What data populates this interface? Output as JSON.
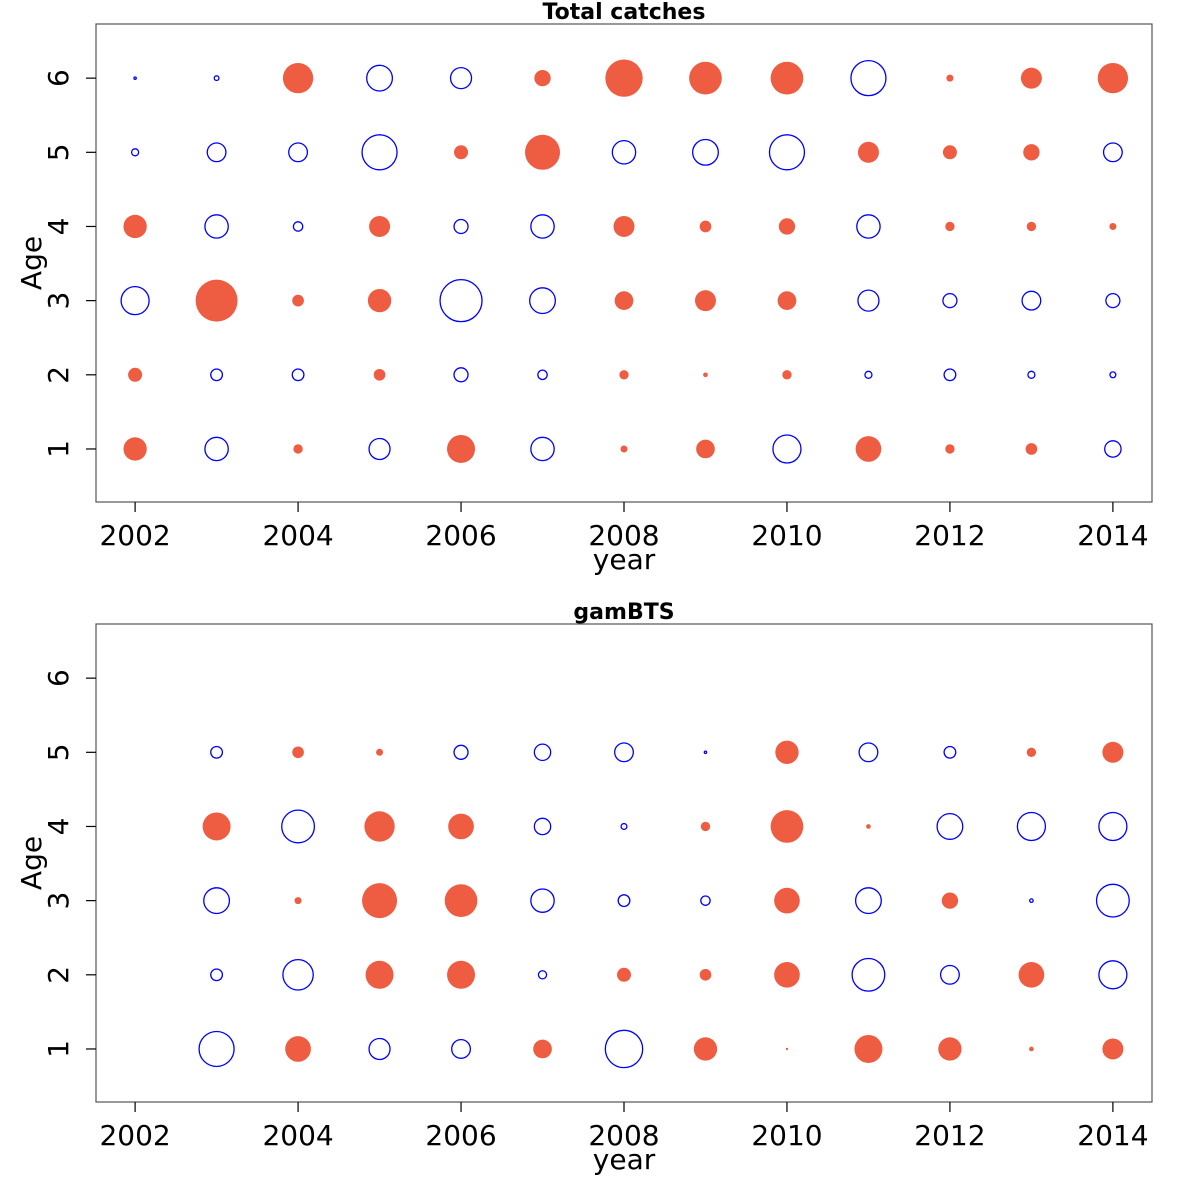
{
  "chart_data": [
    {
      "type": "bubble",
      "title": "Total catches",
      "xlabel": "year",
      "ylabel": "Age",
      "x": [
        2002,
        2003,
        2004,
        2005,
        2006,
        2007,
        2008,
        2009,
        2010,
        2011,
        2012,
        2013,
        2014
      ],
      "ages": [
        1,
        2,
        3,
        4,
        5,
        6
      ],
      "values": [
        [
          1.0,
          -1.0,
          0.4,
          -0.9,
          1.2,
          -1.0,
          0.3,
          0.8,
          -1.2,
          1.1,
          0.4,
          0.5,
          -0.7
        ],
        [
          0.6,
          -0.5,
          -0.5,
          0.5,
          -0.6,
          -0.4,
          0.4,
          0.2,
          0.4,
          -0.3,
          -0.5,
          -0.3,
          -0.25
        ],
        [
          -1.2,
          1.8,
          0.5,
          1.0,
          -1.8,
          -1.1,
          0.8,
          0.9,
          0.8,
          -0.9,
          -0.6,
          -0.8,
          -0.6
        ],
        [
          1.0,
          -1.0,
          -0.4,
          0.9,
          -0.6,
          -1.0,
          0.9,
          0.5,
          0.7,
          -1.0,
          0.4,
          0.4,
          0.3
        ],
        [
          -0.3,
          -0.8,
          -0.8,
          -1.5,
          0.6,
          1.5,
          -1.0,
          -1.1,
          -1.5,
          0.9,
          0.6,
          0.7,
          -0.8
        ],
        [
          -0.1,
          -0.2,
          1.3,
          -1.1,
          -0.9,
          0.7,
          1.6,
          1.4,
          1.4,
          -1.5,
          0.3,
          0.9,
          1.3
        ]
      ],
      "positive_color": "#ee5c42",
      "negative_color": "#0000ff",
      "xlim": [
        2001.52,
        2014.48
      ],
      "ylim": [
        0.285,
        6.73
      ],
      "xticks": [
        2002,
        2004,
        2006,
        2008,
        2010,
        2012,
        2014
      ],
      "yticks": [
        1,
        2,
        3,
        4,
        5,
        6
      ]
    },
    {
      "type": "bubble",
      "title": "gamBTS",
      "xlabel": "year",
      "ylabel": "Age",
      "x": [
        2002,
        2003,
        2004,
        2005,
        2006,
        2007,
        2008,
        2009,
        2010,
        2011,
        2012,
        2013,
        2014
      ],
      "ages": [
        1,
        2,
        3,
        4,
        5,
        6
      ],
      "values": [
        [
          null,
          -1.5,
          1.1,
          -0.9,
          -0.8,
          0.8,
          -1.6,
          1.0,
          0.1,
          1.2,
          1.0,
          0.2,
          0.9
        ],
        [
          null,
          -0.5,
          -1.3,
          1.2,
          1.2,
          -0.35,
          0.6,
          0.5,
          1.1,
          -1.4,
          -0.8,
          1.1,
          -1.2
        ],
        [
          null,
          -1.1,
          0.3,
          1.5,
          1.4,
          -1.0,
          -0.5,
          -0.4,
          1.1,
          -1.1,
          0.7,
          -0.15,
          -1.4
        ],
        [
          null,
          1.2,
          -1.4,
          1.3,
          1.1,
          -0.7,
          -0.25,
          0.4,
          1.4,
          0.2,
          -1.1,
          -1.2,
          -1.2
        ],
        [
          null,
          -0.5,
          0.5,
          0.3,
          -0.6,
          -0.7,
          -0.8,
          -0.1,
          1.0,
          -0.8,
          -0.5,
          0.4,
          0.9
        ],
        [
          null,
          null,
          null,
          null,
          null,
          null,
          null,
          null,
          null,
          null,
          null,
          null,
          null
        ]
      ],
      "positive_color": "#ee5c42",
      "negative_color": "#0000ff",
      "xlim": [
        2001.52,
        2014.48
      ],
      "ylim": [
        0.285,
        6.73
      ],
      "xticks": [
        2002,
        2004,
        2006,
        2008,
        2010,
        2012,
        2014
      ],
      "yticks": [
        1,
        2,
        3,
        4,
        5,
        6
      ]
    }
  ]
}
